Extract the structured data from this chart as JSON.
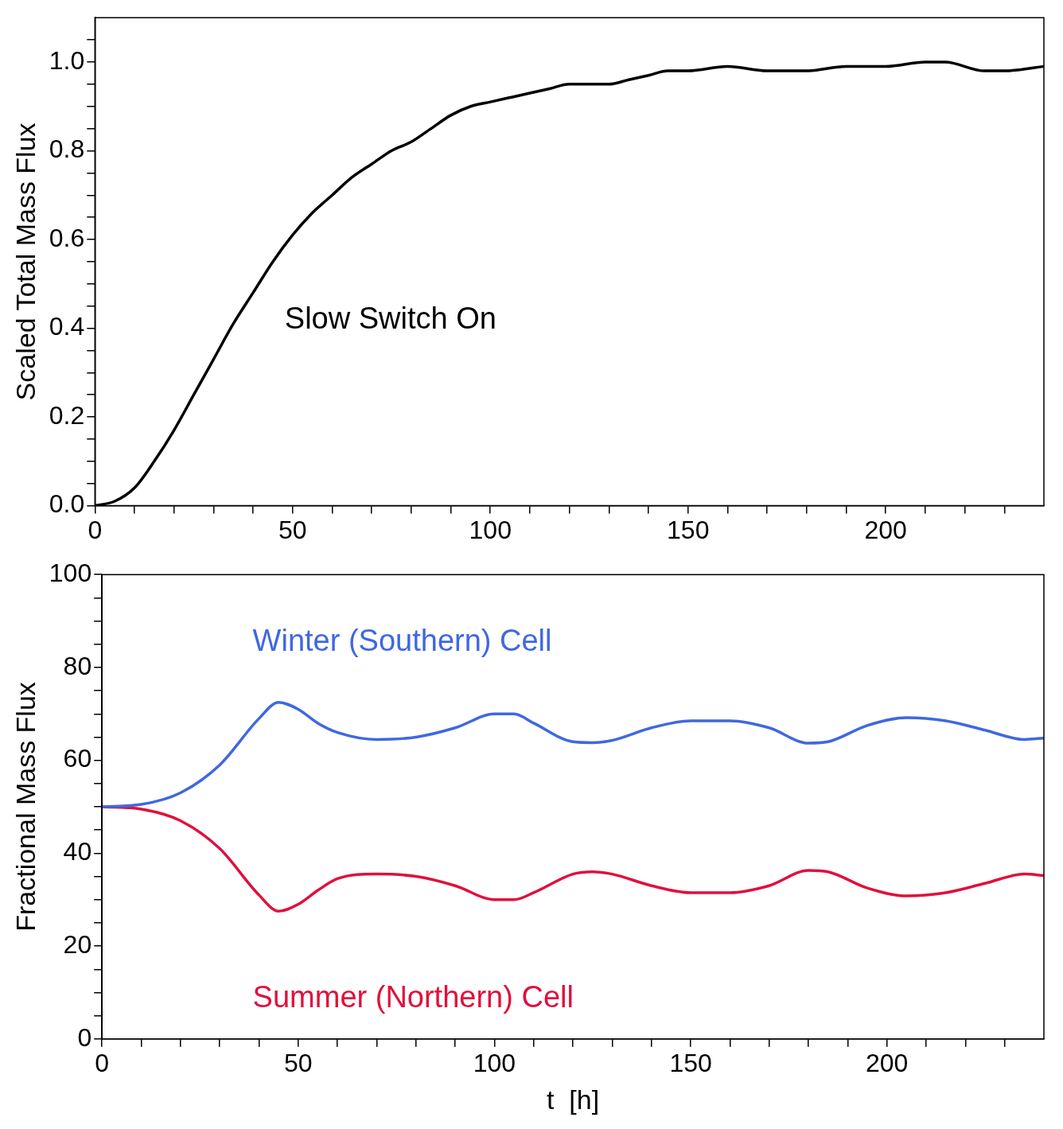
{
  "chart_data": [
    {
      "type": "line",
      "ylabel": "Scaled Total Mass Flux",
      "annotations": [
        "Slow Switch On"
      ],
      "xlim": [
        0,
        240
      ],
      "ylim": [
        0,
        1.1
      ],
      "xticks": [
        0,
        {
          "value": 10,
          "label": null
        },
        {
          "value": 20,
          "label": null
        },
        {
          "value": 30,
          "label": null
        },
        {
          "value": 40,
          "label": null
        },
        50,
        {
          "value": 60,
          "label": null
        },
        {
          "value": 70,
          "label": null
        },
        {
          "value": 80,
          "label": null
        },
        {
          "value": 90,
          "label": null
        },
        100,
        {
          "value": 110,
          "label": null
        },
        {
          "value": 120,
          "label": null
        },
        {
          "value": 130,
          "label": null
        },
        {
          "value": 140,
          "label": null
        },
        150,
        {
          "value": 160,
          "label": null
        },
        {
          "value": 170,
          "label": null
        },
        {
          "value": 180,
          "label": null
        },
        {
          "value": 190,
          "label": null
        },
        200,
        {
          "value": 210,
          "label": null
        },
        {
          "value": 220,
          "label": null
        },
        {
          "value": 230,
          "label": null
        }
      ],
      "yticks": [
        {
          "value": 0,
          "label": "0.0"
        },
        {
          "value": 0.05,
          "label": null
        },
        {
          "value": 0.1,
          "label": null
        },
        {
          "value": 0.15,
          "label": null
        },
        {
          "value": 0.2,
          "label": "0.2"
        },
        {
          "value": 0.25,
          "label": null
        },
        {
          "value": 0.3,
          "label": null
        },
        {
          "value": 0.35,
          "label": null
        },
        {
          "value": 0.4,
          "label": "0.4"
        },
        {
          "value": 0.45,
          "label": null
        },
        {
          "value": 0.5,
          "label": null
        },
        {
          "value": 0.55,
          "label": null
        },
        {
          "value": 0.6,
          "label": "0.6"
        },
        {
          "value": 0.65,
          "label": null
        },
        {
          "value": 0.7,
          "label": null
        },
        {
          "value": 0.75,
          "label": null
        },
        {
          "value": 0.8,
          "label": "0.8"
        },
        {
          "value": 0.85,
          "label": null
        },
        {
          "value": 0.9,
          "label": null
        },
        {
          "value": 0.95,
          "label": null
        },
        {
          "value": 1.0,
          "label": "1.0"
        },
        {
          "value": 1.05,
          "label": null
        }
      ],
      "grid": false,
      "legend": false,
      "x": [
        0,
        5,
        10,
        15,
        20,
        25,
        30,
        35,
        40,
        45,
        50,
        55,
        60,
        65,
        70,
        75,
        80,
        85,
        90,
        95,
        100,
        105,
        110,
        115,
        120,
        125,
        130,
        135,
        140,
        145,
        150,
        160,
        170,
        180,
        190,
        200,
        210,
        215,
        225,
        230,
        240
      ],
      "series": [
        {
          "color": "#000000",
          "values": [
            0,
            0.01,
            0.04,
            0.1,
            0.17,
            0.25,
            0.33,
            0.41,
            0.48,
            0.55,
            0.61,
            0.66,
            0.7,
            0.74,
            0.77,
            0.8,
            0.82,
            0.85,
            0.88,
            0.9,
            0.91,
            0.92,
            0.93,
            0.94,
            0.95,
            0.95,
            0.95,
            0.96,
            0.97,
            0.98,
            0.98,
            0.99,
            0.98,
            0.98,
            0.99,
            0.99,
            1.0,
            1.0,
            0.98,
            0.98,
            0.99
          ]
        }
      ]
    },
    {
      "type": "line",
      "xlabel": "t  [h]",
      "ylabel": "Fractional Mass Flux",
      "xlim": [
        0,
        240
      ],
      "ylim": [
        0,
        100
      ],
      "xticks": [
        0,
        {
          "value": 10,
          "label": null
        },
        {
          "value": 20,
          "label": null
        },
        {
          "value": 30,
          "label": null
        },
        {
          "value": 40,
          "label": null
        },
        50,
        {
          "value": 60,
          "label": null
        },
        {
          "value": 70,
          "label": null
        },
        {
          "value": 80,
          "label": null
        },
        {
          "value": 90,
          "label": null
        },
        100,
        {
          "value": 110,
          "label": null
        },
        {
          "value": 120,
          "label": null
        },
        {
          "value": 130,
          "label": null
        },
        {
          "value": 140,
          "label": null
        },
        150,
        {
          "value": 160,
          "label": null
        },
        {
          "value": 170,
          "label": null
        },
        {
          "value": 180,
          "label": null
        },
        {
          "value": 190,
          "label": null
        },
        200,
        {
          "value": 210,
          "label": null
        },
        {
          "value": 220,
          "label": null
        },
        {
          "value": 230,
          "label": null
        }
      ],
      "yticks": [
        0,
        {
          "value": 5,
          "label": null
        },
        {
          "value": 10,
          "label": null
        },
        {
          "value": 15,
          "label": null
        },
        20,
        {
          "value": 25,
          "label": null
        },
        {
          "value": 30,
          "label": null
        },
        {
          "value": 35,
          "label": null
        },
        40,
        {
          "value": 45,
          "label": null
        },
        {
          "value": 50,
          "label": null
        },
        {
          "value": 55,
          "label": null
        },
        60,
        {
          "value": 65,
          "label": null
        },
        {
          "value": 70,
          "label": null
        },
        {
          "value": 75,
          "label": null
        },
        80,
        {
          "value": 85,
          "label": null
        },
        {
          "value": 90,
          "label": null
        },
        {
          "value": 95,
          "label": null
        },
        100
      ],
      "grid": false,
      "legend": false,
      "x": [
        0,
        10,
        20,
        30,
        40,
        45,
        50,
        55,
        60,
        70,
        80,
        90,
        100,
        105,
        110,
        120,
        125,
        130,
        140,
        150,
        160,
        170,
        180,
        185,
        195,
        205,
        215,
        225,
        235,
        240
      ],
      "series": [
        {
          "name": "Winter (Southern) Cell",
          "color": "#3f68e0",
          "values": [
            50,
            50.5,
            53,
            59,
            69,
            72.5,
            71,
            68,
            66,
            64.5,
            65,
            67,
            70,
            70,
            68,
            64,
            63.8,
            64.3,
            67,
            68.5,
            68.5,
            67,
            63.7,
            64,
            67.5,
            69.2,
            68.5,
            66.5,
            64.5,
            64.8
          ]
        },
        {
          "name": "Summer (Northern) Cell",
          "color": "#e0103c",
          "values": [
            50,
            49.5,
            47,
            41,
            31,
            27.5,
            29,
            32,
            34.5,
            35.5,
            35,
            33,
            30,
            30,
            31.5,
            35.5,
            36,
            35.5,
            33,
            31.5,
            31.5,
            33,
            36.3,
            36,
            32.5,
            30.8,
            31.5,
            33.5,
            35.5,
            35.2
          ]
        }
      ]
    }
  ]
}
